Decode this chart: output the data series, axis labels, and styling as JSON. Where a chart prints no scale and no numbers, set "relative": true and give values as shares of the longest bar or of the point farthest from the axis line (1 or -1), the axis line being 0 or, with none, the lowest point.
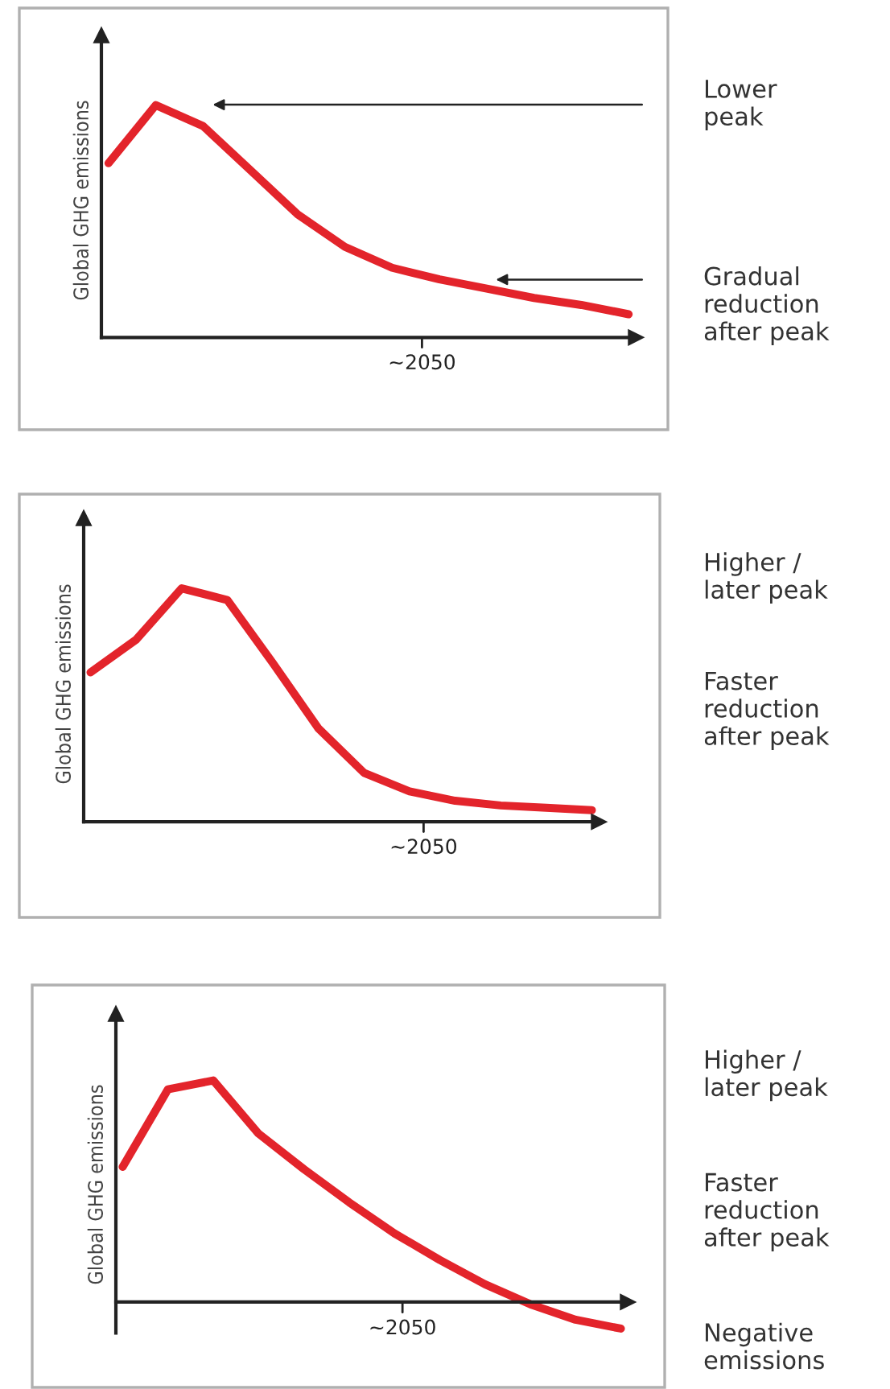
{
  "chart_data": [
    {
      "type": "line",
      "relative": true,
      "ylabel": "Global GHG emissions",
      "categories": [
        null,
        null,
        null,
        null,
        null,
        null,
        null,
        null,
        null,
        null,
        null,
        null
      ],
      "series": [
        {
          "color": "#e3242b",
          "values": [
            0.75,
            1.0,
            0.91,
            0.72,
            0.53,
            0.39,
            0.3,
            0.25,
            0.21,
            0.17,
            0.14,
            0.1
          ]
        }
      ],
      "annotations": [
        "~2050",
        "Lower\npeak",
        "Gradual\nreduction\nafter peak"
      ]
    },
    {
      "type": "line",
      "relative": true,
      "ylabel": "Global GHG emissions",
      "categories": [
        null,
        null,
        null,
        null,
        null,
        null,
        null,
        null,
        null,
        null,
        null,
        null
      ],
      "series": [
        {
          "color": "#e3242b",
          "values": [
            0.64,
            0.78,
            1.0,
            0.95,
            0.68,
            0.4,
            0.21,
            0.13,
            0.09,
            0.07,
            0.06,
            0.05
          ]
        }
      ],
      "annotations": [
        "~2050",
        "Higher /\nlater peak",
        "Faster\nreduction\nafter peak"
      ]
    },
    {
      "type": "line",
      "relative": true,
      "ylabel": "Global GHG emissions",
      "categories": [
        null,
        null,
        null,
        null,
        null,
        null,
        null,
        null,
        null,
        null,
        null,
        null
      ],
      "series": [
        {
          "color": "#e3242b",
          "values": [
            0.61,
            0.96,
            1.0,
            0.76,
            0.6,
            0.45,
            0.31,
            0.19,
            0.08,
            -0.01,
            -0.08,
            -0.12
          ]
        }
      ],
      "annotations": [
        "~2050",
        "Higher /\nlater peak",
        "Faster\nreduction\nafter peak",
        "Negative\nemissions"
      ]
    }
  ]
}
